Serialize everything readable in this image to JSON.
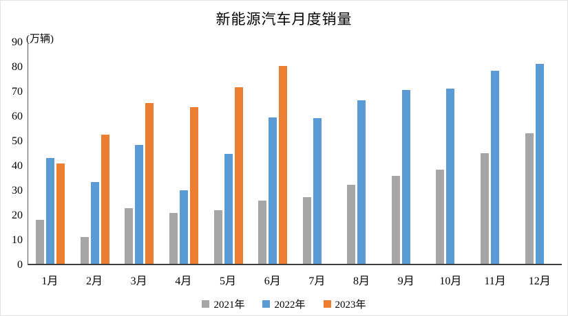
{
  "chart_data": {
    "type": "bar",
    "title": "新能源汽车月度销量",
    "unit_label": "(万辆)",
    "categories": [
      "1月",
      "2月",
      "3月",
      "4月",
      "5月",
      "6月",
      "7月",
      "8月",
      "9月",
      "10月",
      "11月",
      "12月"
    ],
    "series": [
      {
        "name": "2021年",
        "color": "#A6A6A6",
        "values": [
          17.9,
          10.9,
          22.6,
          20.6,
          21.7,
          25.6,
          27.1,
          32.1,
          35.7,
          38.3,
          45.0,
          53.1
        ]
      },
      {
        "name": "2022年",
        "color": "#5B9BD5",
        "values": [
          43.1,
          33.4,
          48.4,
          29.9,
          44.7,
          59.6,
          59.3,
          66.6,
          70.8,
          71.4,
          78.6,
          81.4
        ]
      },
      {
        "name": "2023年",
        "color": "#ED7D31",
        "values": [
          40.8,
          52.5,
          65.3,
          63.8,
          71.7,
          80.6,
          null,
          null,
          null,
          null,
          null,
          null
        ]
      }
    ],
    "ylim": [
      0,
      90
    ],
    "yticks": [
      0,
      10,
      20,
      30,
      40,
      50,
      60,
      70,
      80,
      90
    ],
    "grid": false,
    "legend_position": "bottom",
    "colors": {
      "axis_line": "#595959",
      "baseline": "#3F3F3F",
      "text": "#000000",
      "background": "#FFFFFF"
    }
  }
}
